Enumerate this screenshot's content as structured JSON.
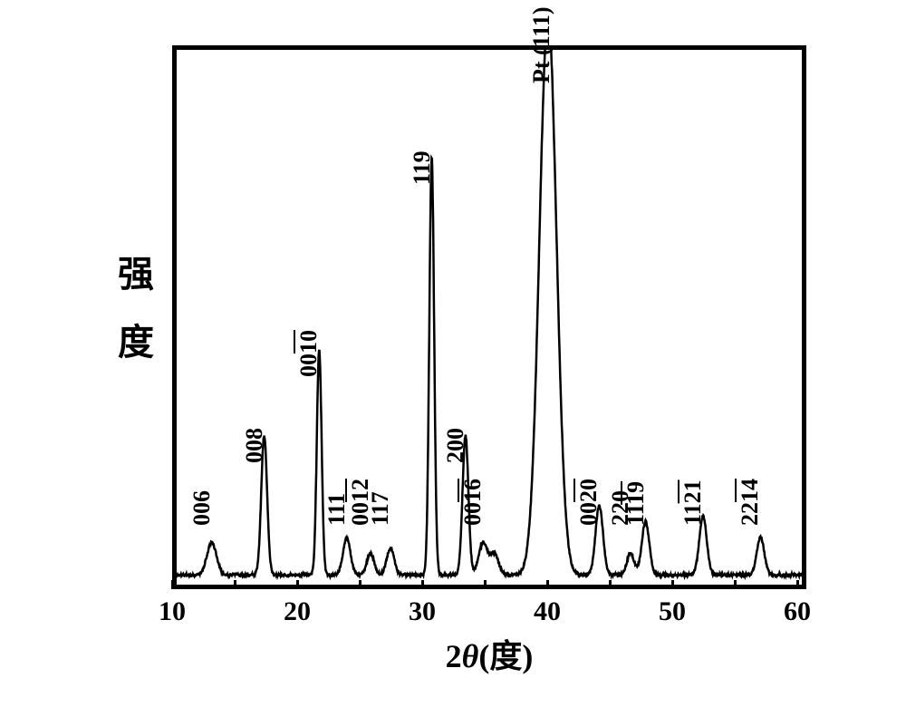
{
  "type": "xrd-line",
  "background_color": "#ffffff",
  "line_color": "#000000",
  "border_color": "#000000",
  "font_family": "Times New Roman / SimSun",
  "xaxis": {
    "min": 10,
    "max": 60,
    "major_ticks": [
      10,
      20,
      30,
      40,
      50,
      60
    ],
    "tick_labels": [
      "10",
      "20",
      "30",
      "40",
      "50",
      "60"
    ],
    "minor_ticks": [
      15,
      25,
      35,
      45,
      55
    ],
    "label_prefix": "2",
    "label_theta": "θ",
    "label_suffix": "(度)",
    "label_fontsize": 36
  },
  "yaxis": {
    "label_chars": [
      "强",
      "度"
    ],
    "label_fontsize": 40
  },
  "peaks": [
    {
      "two_theta": 12.8,
      "height": 0.06,
      "name": "006",
      "label": "006",
      "width": 0.9
    },
    {
      "two_theta": 17.0,
      "height": 0.26,
      "name": "008",
      "label": "008",
      "width": 0.55
    },
    {
      "two_theta": 21.4,
      "height": 0.42,
      "name": "0010",
      "label": "0010",
      "width": 0.45,
      "underline_last": 2
    },
    {
      "two_theta": 23.6,
      "height": 0.07,
      "name": "111",
      "label": "111",
      "width": 0.7
    },
    {
      "two_theta": 25.5,
      "height": 0.04,
      "name": "0012",
      "label": "0012",
      "width": 0.7,
      "underline_last": 2
    },
    {
      "two_theta": 27.1,
      "height": 0.05,
      "name": "117",
      "label": "117",
      "width": 0.7
    },
    {
      "two_theta": 30.4,
      "height": 0.78,
      "name": "119",
      "label": "119",
      "width": 0.45
    },
    {
      "two_theta": 33.1,
      "height": 0.26,
      "name": "200",
      "label": "200",
      "width": 0.55
    },
    {
      "two_theta": 34.5,
      "height": 0.06,
      "name": "0016",
      "label": "0016",
      "width": 0.8,
      "underline_last": 2
    },
    {
      "two_theta": 35.4,
      "height": 0.04,
      "name": null,
      "label": null,
      "width": 0.8
    },
    {
      "two_theta": 39.7,
      "height": 1.05,
      "name": "Pt(111)",
      "label": "Pt (111)",
      "width": 1.6
    },
    {
      "two_theta": 43.8,
      "height": 0.13,
      "name": "0020",
      "label": "0020",
      "width": 0.7,
      "underline_last": 2
    },
    {
      "two_theta": 46.3,
      "height": 0.04,
      "name": "220",
      "label": "220",
      "width": 0.7
    },
    {
      "two_theta": 47.5,
      "height": 0.1,
      "name": "1119",
      "label": "1119",
      "width": 0.7,
      "underline_last": 2
    },
    {
      "two_theta": 52.1,
      "height": 0.11,
      "name": "1121",
      "label": "1121",
      "width": 0.7,
      "underline_last": 2
    },
    {
      "two_theta": 56.7,
      "height": 0.07,
      "name": "2214",
      "label": "2214",
      "width": 0.7,
      "underline_last": 2
    }
  ],
  "peak_label_fontsize": 26,
  "baseline": 0.018,
  "noise_amp": 0.01,
  "line_width": 2.5
}
